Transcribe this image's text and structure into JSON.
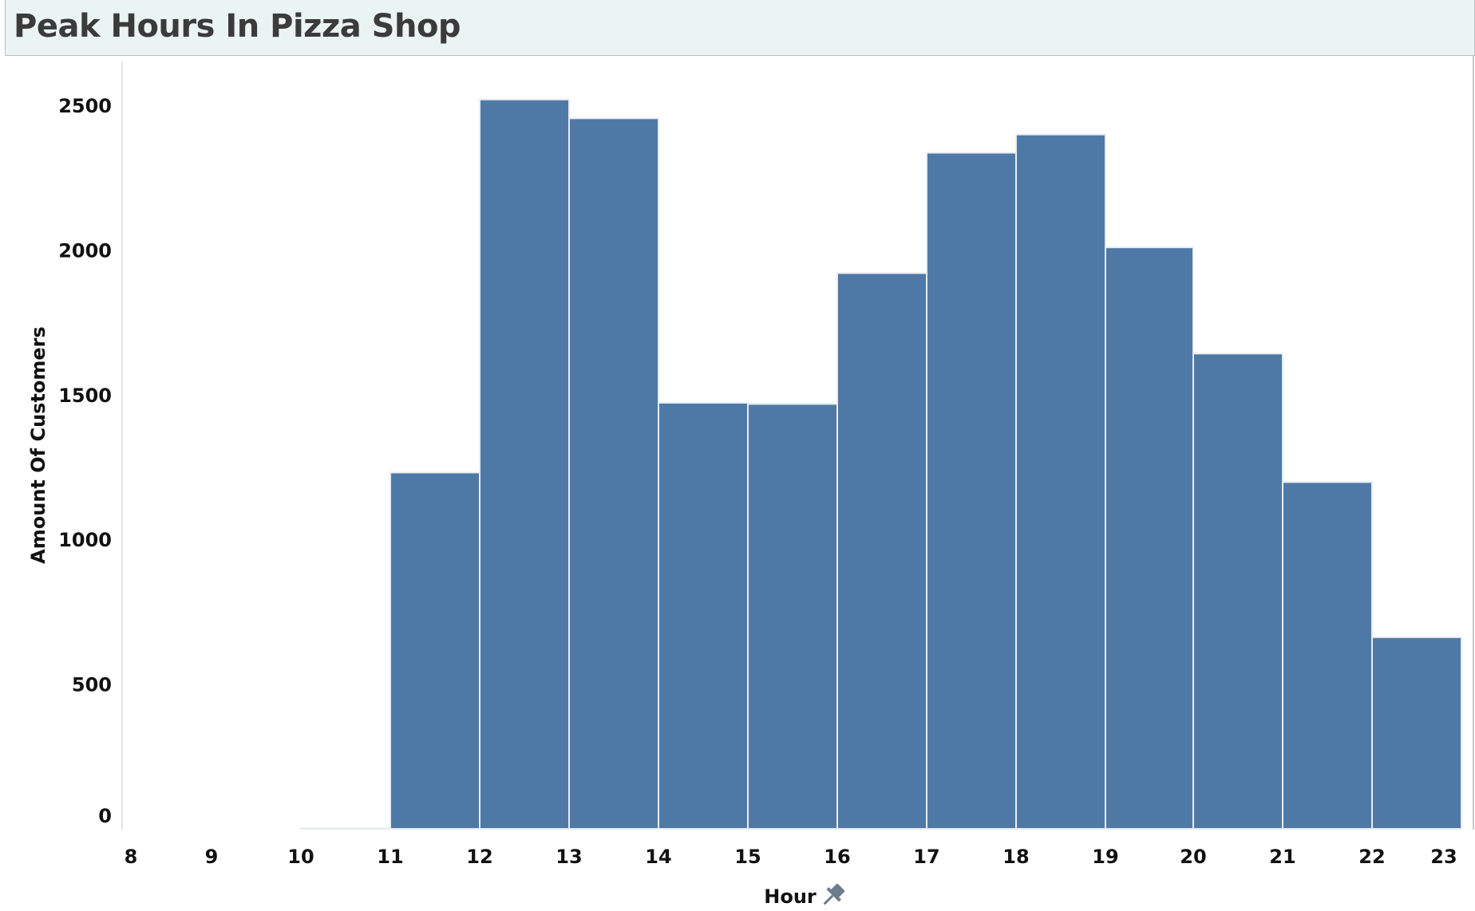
{
  "header": {
    "title": "Peak Hours In Pizza Shop"
  },
  "chart_data": {
    "type": "bar",
    "title": "Peak Hours In Pizza Shop",
    "xlabel": "Hour",
    "ylabel": "Amount Of Customers",
    "x_ticks": [
      "8",
      "9",
      "10",
      "11",
      "12",
      "13",
      "14",
      "15",
      "16",
      "17",
      "18",
      "19",
      "20",
      "21",
      "22",
      "23"
    ],
    "y_ticks": [
      "0",
      "500",
      "1000",
      "1500",
      "2000",
      "2500"
    ],
    "ylim": [
      0,
      2650
    ],
    "xlim": [
      8,
      23
    ],
    "bins": [
      {
        "start": 10,
        "end": 11,
        "value": 2
      },
      {
        "start": 11,
        "end": 12,
        "value": 1231
      },
      {
        "start": 12,
        "end": 13,
        "value": 2520
      },
      {
        "start": 13,
        "end": 14,
        "value": 2455
      },
      {
        "start": 14,
        "end": 15,
        "value": 1472
      },
      {
        "start": 15,
        "end": 16,
        "value": 1468
      },
      {
        "start": 16,
        "end": 17,
        "value": 1920
      },
      {
        "start": 17,
        "end": 18,
        "value": 2336
      },
      {
        "start": 18,
        "end": 19,
        "value": 2399
      },
      {
        "start": 19,
        "end": 20,
        "value": 2009
      },
      {
        "start": 20,
        "end": 21,
        "value": 1642
      },
      {
        "start": 21,
        "end": 22,
        "value": 1198
      },
      {
        "start": 22,
        "end": 23,
        "value": 662
      }
    ],
    "bar_color": "#4e79a7",
    "grid": false
  }
}
